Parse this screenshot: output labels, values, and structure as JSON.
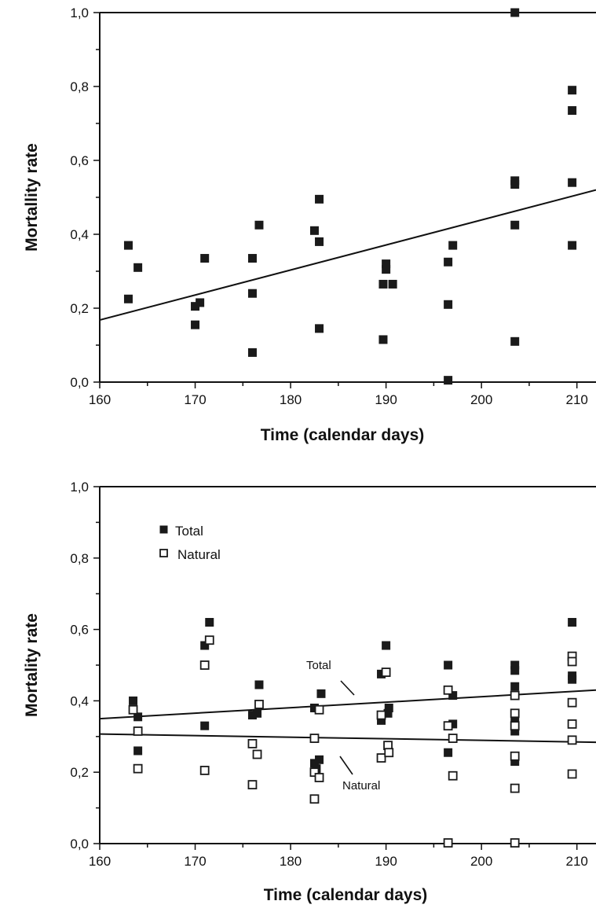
{
  "chart_data": [
    {
      "type": "scatter",
      "title": "",
      "xlabel": "Time (calendar days)",
      "ylabel": "Mortallity rate",
      "xlim": [
        160,
        212
      ],
      "ylim": [
        0.0,
        1.0
      ],
      "x_ticks": [
        160,
        170,
        180,
        190,
        200,
        210
      ],
      "x_tick_labels": [
        "160",
        "170",
        "180",
        "190",
        "200",
        "210"
      ],
      "y_ticks": [
        0.0,
        0.2,
        0.4,
        0.6,
        0.8,
        1.0
      ],
      "y_tick_labels": [
        "0,0",
        "0,2",
        "0,4",
        "0,6",
        "0,8",
        "1,0"
      ],
      "grid": false,
      "series": [
        {
          "marker": "filled-square",
          "color": "#1a1a1a",
          "points": [
            [
              163.0,
              0.37
            ],
            [
              163.0,
              0.225
            ],
            [
              164.0,
              0.31
            ],
            [
              170.0,
              0.155
            ],
            [
              170.0,
              0.205
            ],
            [
              170.5,
              0.215
            ],
            [
              171.0,
              0.335
            ],
            [
              176.0,
              0.08
            ],
            [
              176.0,
              0.24
            ],
            [
              176.0,
              0.335
            ],
            [
              176.7,
              0.425
            ],
            [
              182.5,
              0.41
            ],
            [
              183.0,
              0.145
            ],
            [
              183.0,
              0.38
            ],
            [
              183.0,
              0.495
            ],
            [
              189.7,
              0.115
            ],
            [
              189.7,
              0.265
            ],
            [
              190.0,
              0.305
            ],
            [
              190.0,
              0.32
            ],
            [
              190.7,
              0.265
            ],
            [
              196.5,
              0.005
            ],
            [
              196.5,
              0.21
            ],
            [
              196.5,
              0.325
            ],
            [
              197.0,
              0.37
            ],
            [
              203.5,
              0.11
            ],
            [
              203.5,
              0.425
            ],
            [
              203.5,
              0.535
            ],
            [
              203.5,
              0.545
            ],
            [
              203.5,
              1.0
            ],
            [
              209.5,
              0.37
            ],
            [
              209.5,
              0.54
            ],
            [
              209.5,
              0.735
            ],
            [
              209.5,
              0.79
            ]
          ]
        }
      ],
      "trend_lines": [
        {
          "label": "",
          "x": [
            160,
            212
          ],
          "y": [
            0.168,
            0.52
          ]
        }
      ]
    },
    {
      "type": "scatter",
      "title": "",
      "xlabel": "Time (calendar days)",
      "ylabel": "Mortality rate",
      "xlim": [
        160,
        212
      ],
      "ylim": [
        0.0,
        1.0
      ],
      "x_ticks": [
        160,
        170,
        180,
        190,
        200,
        210
      ],
      "x_tick_labels": [
        "160",
        "170",
        "180",
        "190",
        "200",
        "210"
      ],
      "y_ticks": [
        0.0,
        0.2,
        0.4,
        0.6,
        0.8,
        1.0
      ],
      "y_tick_labels": [
        "0,0",
        "0,2",
        "0,4",
        "0,6",
        "0,8",
        "1,0"
      ],
      "grid": false,
      "legend": {
        "placement": "top-left",
        "entries": [
          {
            "label": "Total",
            "marker": "filled-square"
          },
          {
            "label": "Natural",
            "marker": "open-square"
          }
        ]
      },
      "series": [
        {
          "name": "Total",
          "marker": "filled-square",
          "color": "#1a1a1a",
          "points": [
            [
              163.5,
              0.4
            ],
            [
              164.0,
              0.355
            ],
            [
              164.0,
              0.26
            ],
            [
              171.0,
              0.555
            ],
            [
              171.5,
              0.62
            ],
            [
              171.0,
              0.33
            ],
            [
              176.0,
              0.36
            ],
            [
              176.5,
              0.365
            ],
            [
              176.7,
              0.445
            ],
            [
              182.5,
              0.38
            ],
            [
              182.5,
              0.225
            ],
            [
              182.7,
              0.21
            ],
            [
              183.0,
              0.235
            ],
            [
              183.2,
              0.42
            ],
            [
              189.5,
              0.475
            ],
            [
              189.5,
              0.345
            ],
            [
              190.0,
              0.555
            ],
            [
              190.2,
              0.365
            ],
            [
              190.3,
              0.38
            ],
            [
              196.5,
              0.5
            ],
            [
              196.5,
              0.255
            ],
            [
              197.0,
              0.415
            ],
            [
              197.0,
              0.335
            ],
            [
              203.5,
              0.5
            ],
            [
              203.5,
              0.485
            ],
            [
              203.5,
              0.44
            ],
            [
              203.5,
              0.345
            ],
            [
              203.5,
              0.315
            ],
            [
              203.5,
              0.23
            ],
            [
              209.5,
              0.62
            ],
            [
              209.5,
              0.51
            ],
            [
              209.5,
              0.47
            ],
            [
              209.5,
              0.46
            ]
          ]
        },
        {
          "name": "Natural",
          "marker": "open-square",
          "color": "#1a1a1a",
          "points": [
            [
              163.5,
              0.375
            ],
            [
              164.0,
              0.315
            ],
            [
              164.0,
              0.21
            ],
            [
              171.0,
              0.5
            ],
            [
              171.5,
              0.57
            ],
            [
              171.0,
              0.205
            ],
            [
              176.0,
              0.28
            ],
            [
              176.0,
              0.165
            ],
            [
              176.5,
              0.25
            ],
            [
              176.7,
              0.39
            ],
            [
              182.5,
              0.295
            ],
            [
              182.5,
              0.2
            ],
            [
              182.5,
              0.125
            ],
            [
              183.0,
              0.185
            ],
            [
              183.0,
              0.375
            ],
            [
              189.5,
              0.24
            ],
            [
              189.5,
              0.36
            ],
            [
              190.0,
              0.48
            ],
            [
              190.2,
              0.275
            ],
            [
              190.3,
              0.255
            ],
            [
              196.5,
              0.43
            ],
            [
              196.5,
              0.33
            ],
            [
              196.5,
              0.002
            ],
            [
              197.0,
              0.295
            ],
            [
              197.0,
              0.19
            ],
            [
              203.5,
              0.415
            ],
            [
              203.5,
              0.365
            ],
            [
              203.5,
              0.33
            ],
            [
              203.5,
              0.245
            ],
            [
              203.5,
              0.155
            ],
            [
              203.5,
              0.002
            ],
            [
              209.5,
              0.525
            ],
            [
              209.5,
              0.51
            ],
            [
              209.5,
              0.395
            ],
            [
              209.5,
              0.335
            ],
            [
              209.5,
              0.29
            ],
            [
              209.5,
              0.195
            ]
          ]
        }
      ],
      "trend_lines": [
        {
          "label": "Total",
          "x": [
            160,
            212
          ],
          "y": [
            0.35,
            0.43
          ]
        },
        {
          "label": "Natural",
          "x": [
            160,
            212
          ],
          "y": [
            0.307,
            0.284
          ]
        }
      ],
      "annotations": [
        {
          "text": "Total",
          "points_to": "Total trend line"
        },
        {
          "text": "Natural",
          "points_to": "Natural trend line"
        }
      ]
    }
  ]
}
